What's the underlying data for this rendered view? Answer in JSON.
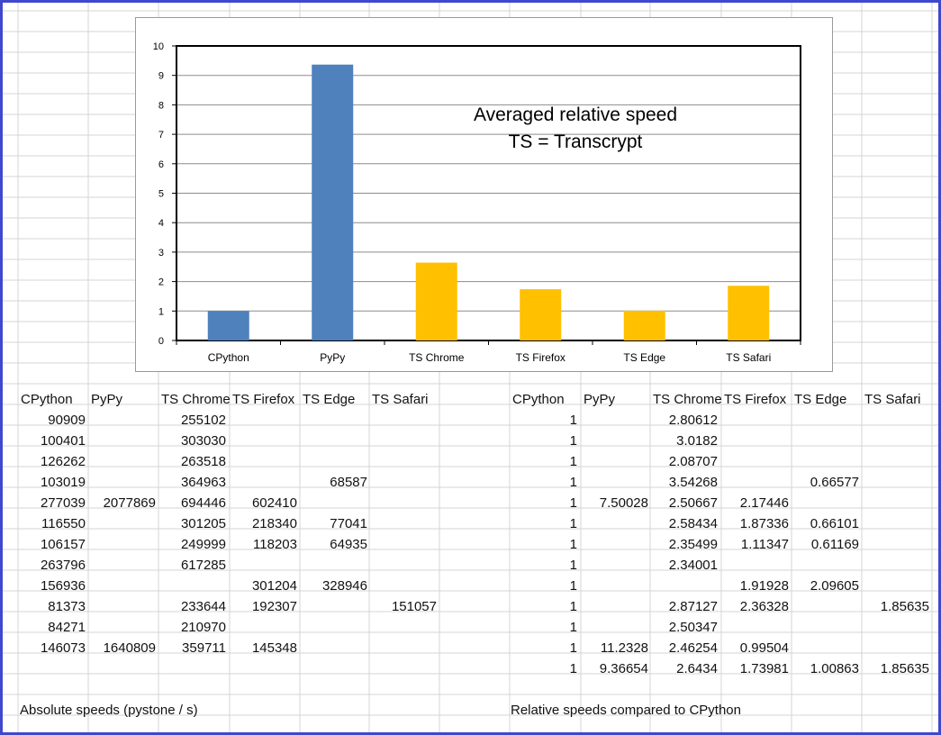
{
  "chart_data": {
    "type": "bar",
    "title": "Averaged relative speed",
    "subtitle": "TS = Transcrypt",
    "categories": [
      "CPython",
      "PyPy",
      "TS Chrome",
      "TS Firefox",
      "TS Edge",
      "TS Safari"
    ],
    "values": [
      1,
      9.36654,
      2.6434,
      1.73981,
      1.00863,
      1.85635
    ],
    "ylim": [
      0,
      10
    ],
    "yticks": [
      "0",
      "1",
      "2",
      "3",
      "4",
      "5",
      "6",
      "7",
      "8",
      "9",
      "10"
    ],
    "xlabel": "",
    "ylabel": "",
    "grid": true,
    "legend": "none",
    "bar_colors": [
      "#4f81bd",
      "#4f81bd",
      "#ffc000",
      "#ffc000",
      "#ffc000",
      "#ffc000"
    ]
  },
  "absolute_table": {
    "headers": [
      "CPython",
      "PyPy",
      "TS Chrome",
      "TS Firefox",
      "TS Edge",
      "TS Safari"
    ],
    "rows": [
      [
        "90909",
        "",
        "255102",
        "",
        "",
        ""
      ],
      [
        "100401",
        "",
        "303030",
        "",
        "",
        ""
      ],
      [
        "126262",
        "",
        "263518",
        "",
        "",
        ""
      ],
      [
        "103019",
        "",
        "364963",
        "",
        "68587",
        ""
      ],
      [
        "277039",
        "2077869",
        "694446",
        "602410",
        "",
        ""
      ],
      [
        "116550",
        "",
        "301205",
        "218340",
        "77041",
        ""
      ],
      [
        "106157",
        "",
        "249999",
        "118203",
        "64935",
        ""
      ],
      [
        "263796",
        "",
        "617285",
        "",
        "",
        ""
      ],
      [
        "156936",
        "",
        "",
        "301204",
        "328946",
        ""
      ],
      [
        "81373",
        "",
        "233644",
        "192307",
        "",
        "151057"
      ],
      [
        "84271",
        "",
        "210970",
        "",
        "",
        ""
      ],
      [
        "146073",
        "1640809",
        "359711",
        "145348",
        "",
        ""
      ]
    ],
    "caption": "Absolute speeds (pystone / s)"
  },
  "relative_table": {
    "headers": [
      "CPython",
      "PyPy",
      "TS Chrome",
      "TS Firefox",
      "TS Edge",
      "TS Safari"
    ],
    "rows": [
      [
        "1",
        "",
        "2.80612",
        "",
        "",
        ""
      ],
      [
        "1",
        "",
        "3.0182",
        "",
        "",
        ""
      ],
      [
        "1",
        "",
        "2.08707",
        "",
        "",
        ""
      ],
      [
        "1",
        "",
        "3.54268",
        "",
        "0.66577",
        ""
      ],
      [
        "1",
        "7.50028",
        "2.50667",
        "2.17446",
        "",
        ""
      ],
      [
        "1",
        "",
        "2.58434",
        "1.87336",
        "0.66101",
        ""
      ],
      [
        "1",
        "",
        "2.35499",
        "1.11347",
        "0.61169",
        ""
      ],
      [
        "1",
        "",
        "2.34001",
        "",
        "",
        ""
      ],
      [
        "1",
        "",
        "",
        "1.91928",
        "2.09605",
        ""
      ],
      [
        "1",
        "",
        "2.87127",
        "2.36328",
        "",
        "1.85635"
      ],
      [
        "1",
        "",
        "2.50347",
        "",
        "",
        ""
      ],
      [
        "1",
        "11.2328",
        "2.46254",
        "0.99504",
        "",
        ""
      ],
      [
        "1",
        "9.36654",
        "2.6434",
        "1.73981",
        "1.00863",
        "1.85635"
      ]
    ],
    "caption": "Relative speeds compared to CPython"
  }
}
